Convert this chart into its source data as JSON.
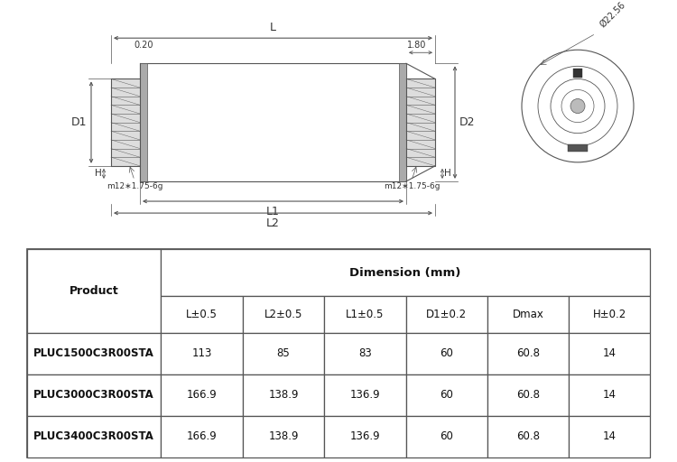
{
  "bg_color": "#ffffff",
  "annotations": {
    "L_label": "L",
    "L1_label": "L1",
    "L2_label": "L2",
    "D1_label": "D1",
    "D2_label": "D2",
    "H_label": "H",
    "offset_left": "0.20",
    "offset_right": "1.80",
    "thread_label": "m12∗1.75-6g",
    "diameter_label": "Ø22.56"
  },
  "table": {
    "title_col": "Product",
    "dim_group_label": "Dimension (mm)",
    "col_headers": [
      "L±0.5",
      "L2±0.5",
      "L1±0.5",
      "D1±0.2",
      "Dmax",
      "H±0.2"
    ],
    "rows": [
      {
        "product": "PLUC1500C3R00STA",
        "values": [
          "113",
          "85",
          "83",
          "60",
          "60.8",
          "14"
        ]
      },
      {
        "product": "PLUC3000C3R00STA",
        "values": [
          "166.9",
          "138.9",
          "136.9",
          "60",
          "60.8",
          "14"
        ]
      },
      {
        "product": "PLUC3400C3R00STA",
        "values": [
          "166.9",
          "138.9",
          "136.9",
          "60",
          "60.8",
          "14"
        ]
      }
    ],
    "line_color": "#555555"
  }
}
